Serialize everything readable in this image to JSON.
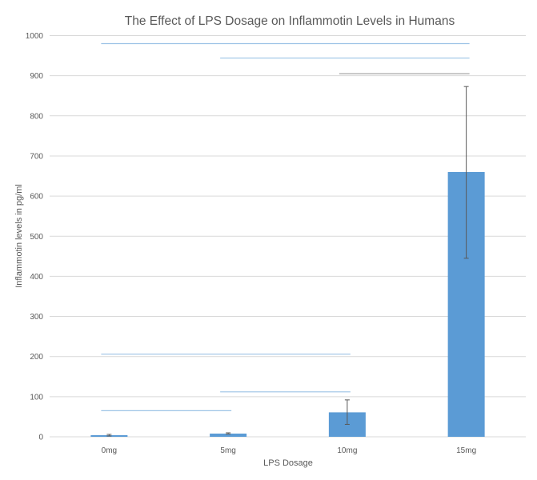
{
  "chart_data": {
    "type": "bar",
    "title": "The Effect of LPS Dosage on Inflammotin Levels in Humans",
    "xlabel": "LPS Dosage",
    "ylabel": "Inflammotin levels in pg/ml",
    "categories": [
      "0mg",
      "5mg",
      "10mg",
      "15mg"
    ],
    "values": [
      4,
      8,
      61,
      660
    ],
    "error_bars": [
      [
        2,
        6
      ],
      [
        7,
        10
      ],
      [
        31,
        92
      ],
      [
        445,
        873
      ]
    ],
    "ylim": [
      0,
      1000
    ],
    "yticks": [
      0,
      100,
      200,
      300,
      400,
      500,
      600,
      700,
      800,
      900,
      1000
    ],
    "grid": true,
    "legend": "none",
    "bar_color": "#5B9BD5",
    "comparison_lines": [
      {
        "from": "0mg",
        "to": "15mg",
        "y": 980,
        "color": "#9DC3E6"
      },
      {
        "from": "5mg",
        "to": "15mg",
        "y": 944,
        "color": "#9DC3E6"
      },
      {
        "from": "10mg",
        "to": "15mg",
        "y": 905,
        "color": "#A6A6A6"
      },
      {
        "from": "0mg",
        "to": "10mg",
        "y": 206,
        "color": "#9DC3E6"
      },
      {
        "from": "5mg",
        "to": "10mg",
        "y": 112,
        "color": "#9DC3E6"
      },
      {
        "from": "0mg",
        "to": "5mg",
        "y": 65,
        "color": "#9DC3E6"
      }
    ]
  }
}
